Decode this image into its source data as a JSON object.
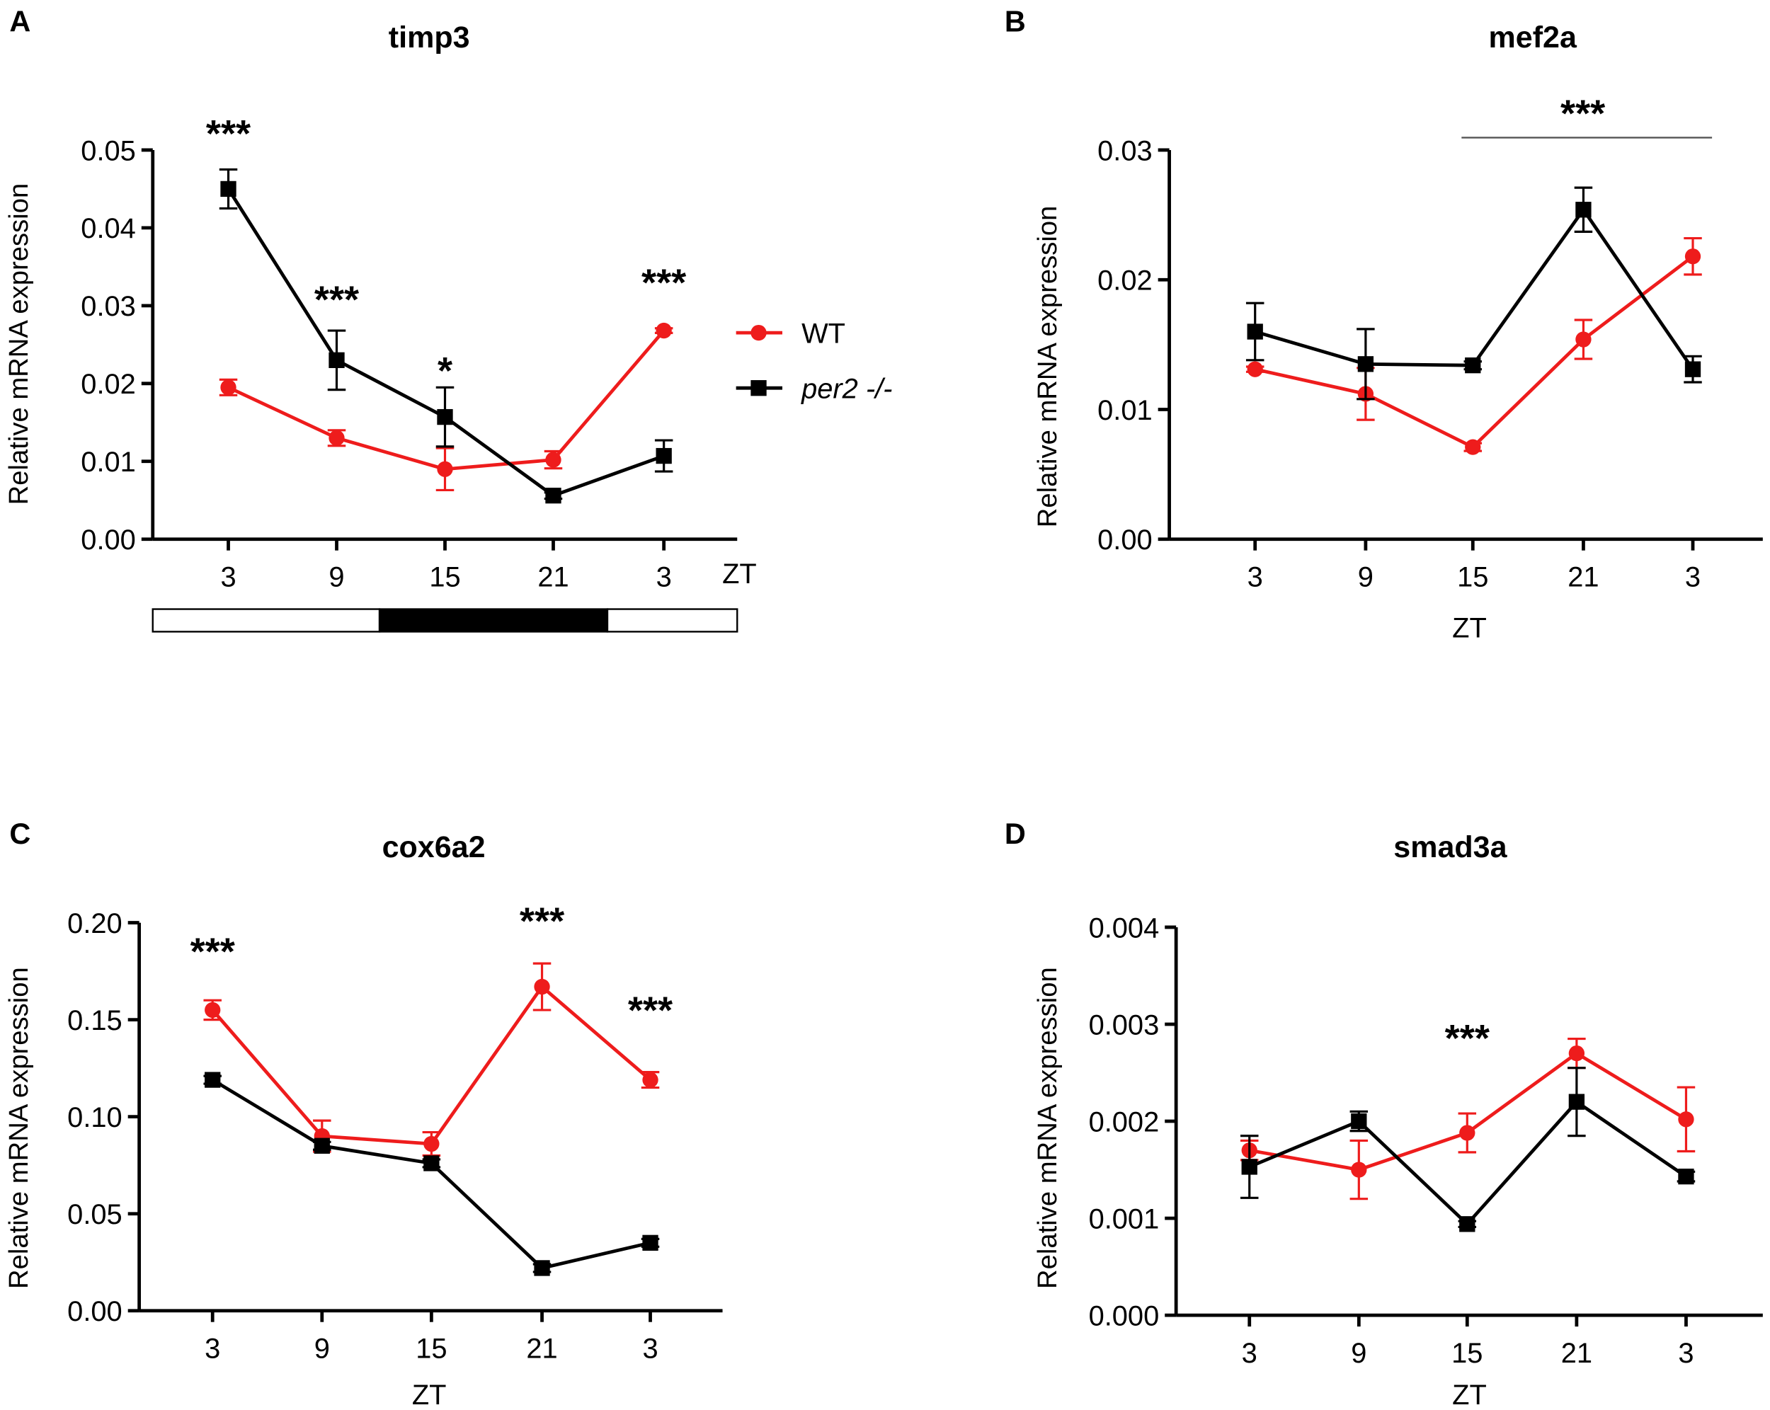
{
  "chart_data": [
    {
      "type": "line",
      "panel_letter": "A",
      "title": "timp3",
      "xlabel": "ZT",
      "ylabel": "Relative mRNA expression",
      "categories": [
        "3",
        "9",
        "15",
        "21",
        "3"
      ],
      "ylim": [
        0,
        0.05
      ],
      "yticks": [
        "0.00",
        "0.01",
        "0.02",
        "0.03",
        "0.04",
        "0.05"
      ],
      "series": [
        {
          "name": "WT",
          "color": "#ee1c1c",
          "marker": "circle",
          "values": [
            0.0195,
            0.013,
            0.009,
            0.0102,
            0.0268
          ],
          "errors": [
            0.001,
            0.001,
            0.0027,
            0.0011,
            0.0003
          ]
        },
        {
          "name": "per2 -/-",
          "color": "#000000",
          "marker": "square",
          "values": [
            0.045,
            0.023,
            0.0157,
            0.0056,
            0.0107
          ],
          "errors": [
            0.0025,
            0.0038,
            0.0038,
            0.0004,
            0.002
          ]
        }
      ],
      "significance": [
        {
          "index": 0,
          "label": "***"
        },
        {
          "index": 1,
          "label": "***"
        },
        {
          "index": 2,
          "label": "*"
        },
        {
          "index": 4,
          "label": "***"
        }
      ],
      "legend": {
        "placement": "right",
        "items": [
          "WT",
          "per2 -/-"
        ]
      },
      "photoperiod": [
        "light",
        "dark",
        "light"
      ]
    },
    {
      "type": "line",
      "panel_letter": "B",
      "title": "mef2a",
      "xlabel": "ZT",
      "ylabel": "Relative mRNA expression",
      "categories": [
        "3",
        "9",
        "15",
        "21",
        "3"
      ],
      "ylim": [
        0,
        0.03
      ],
      "yticks": [
        "0.00",
        "0.01",
        "0.02",
        "0.03"
      ],
      "series": [
        {
          "name": "WT",
          "color": "#ee1c1c",
          "marker": "circle",
          "values": [
            0.0131,
            0.0112,
            0.0071,
            0.0154,
            0.0218
          ],
          "errors": [
            0.0002,
            0.002,
            0.0003,
            0.0015,
            0.0014
          ]
        },
        {
          "name": "per2 -/-",
          "color": "#000000",
          "marker": "square",
          "values": [
            0.016,
            0.0135,
            0.0134,
            0.0254,
            0.0131
          ],
          "errors": [
            0.0022,
            0.0027,
            0.0003,
            0.0017,
            0.001
          ]
        }
      ],
      "significance_bar": {
        "from_index": 2,
        "to_index": 4,
        "label": "***"
      }
    },
    {
      "type": "line",
      "panel_letter": "C",
      "title": "cox6a2",
      "xlabel": "ZT",
      "ylabel": "Relative mRNA expression",
      "categories": [
        "3",
        "9",
        "15",
        "21",
        "3"
      ],
      "ylim": [
        0,
        0.2
      ],
      "yticks": [
        "0.00",
        "0.05",
        "0.10",
        "0.15",
        "0.20"
      ],
      "series": [
        {
          "name": "WT",
          "color": "#ee1c1c",
          "marker": "circle",
          "values": [
            0.155,
            0.09,
            0.086,
            0.167,
            0.119
          ],
          "errors": [
            0.005,
            0.008,
            0.006,
            0.012,
            0.004
          ]
        },
        {
          "name": "per2 -/-",
          "color": "#000000",
          "marker": "square",
          "values": [
            0.119,
            0.085,
            0.076,
            0.022,
            0.035
          ],
          "errors": [
            0.002,
            0.002,
            0.002,
            0.002,
            0.002
          ]
        }
      ],
      "significance": [
        {
          "index": 0,
          "label": "***"
        },
        {
          "index": 3,
          "label": "***"
        },
        {
          "index": 4,
          "label": "***"
        }
      ]
    },
    {
      "type": "line",
      "panel_letter": "D",
      "title": "smad3a",
      "xlabel": "ZT",
      "ylabel": "Relative mRNA expression",
      "categories": [
        "3",
        "9",
        "15",
        "21",
        "3"
      ],
      "ylim": [
        0,
        0.004
      ],
      "yticks": [
        "0.000",
        "0.001",
        "0.002",
        "0.003",
        "0.004"
      ],
      "series": [
        {
          "name": "WT",
          "color": "#ee1c1c",
          "marker": "circle",
          "values": [
            0.0017,
            0.0015,
            0.00188,
            0.0027,
            0.00202
          ],
          "errors": [
            0.0001,
            0.0003,
            0.0002,
            0.00015,
            0.00033
          ]
        },
        {
          "name": "per2 -/-",
          "color": "#000000",
          "marker": "square",
          "values": [
            0.00153,
            0.002,
            0.00094,
            0.0022,
            0.00143
          ],
          "errors": [
            0.00032,
            0.0001,
            3e-05,
            0.00035,
            5e-05
          ]
        }
      ],
      "significance": [
        {
          "index": 2,
          "label": "***"
        }
      ]
    }
  ]
}
